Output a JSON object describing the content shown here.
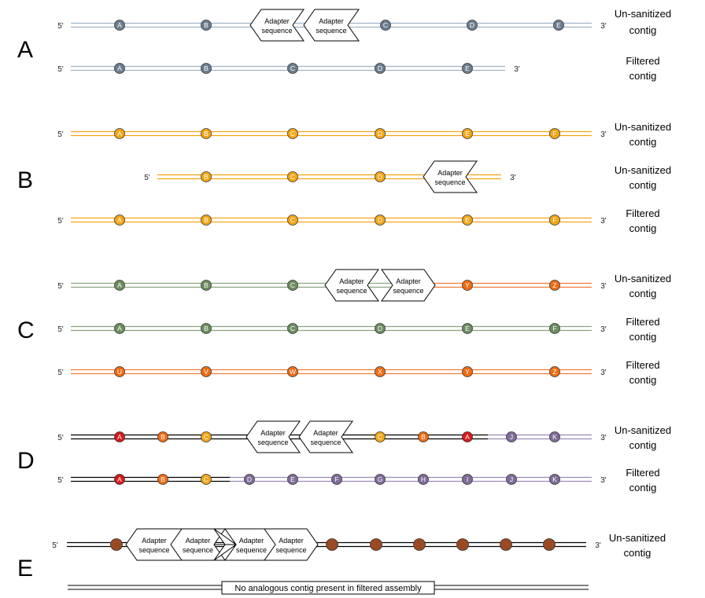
{
  "colors": {
    "slate": "#6b7d8e",
    "amber": "#f2a516",
    "green": "#6b8e5e",
    "orange": "#ee6c14",
    "red": "#d6191c",
    "purple": "#7f6b99",
    "brown": "#9a4a23",
    "line_slate": "#9fb3c8",
    "line_amber": "#f2a516",
    "line_green": "#8aa480",
    "line_orange": "#ee7c3a",
    "line_red": "#d6191c",
    "line_purple": "#9b8ab5",
    "line_black": "#000000"
  },
  "end5": "5'",
  "end3": "3'",
  "adapter_text": [
    "Adapter",
    "sequence"
  ],
  "panels": [
    {
      "letter": "A",
      "contigs": [
        {
          "label": [
            "Un-sanitized",
            "contig"
          ],
          "segments": [
            {
              "color": "line_slate"
            }
          ],
          "nodes": [
            {
              "t": "A",
              "c": "slate"
            },
            {
              "t": "B",
              "c": "slate"
            },
            {
              "t": "C",
              "c": "slate"
            },
            {
              "t": "D",
              "c": "slate"
            },
            {
              "t": "E",
              "c": "slate"
            }
          ],
          "adapters": [
            {
              "dir": "left"
            },
            {
              "dir": "left"
            }
          ]
        },
        {
          "label": [
            "Filtered",
            "contig"
          ],
          "segments": [
            {
              "color": "line_slate"
            }
          ],
          "nodes": [
            {
              "t": "A",
              "c": "slate"
            },
            {
              "t": "B",
              "c": "slate"
            },
            {
              "t": "C",
              "c": "slate"
            },
            {
              "t": "D",
              "c": "slate"
            },
            {
              "t": "E",
              "c": "slate"
            }
          ],
          "adapters": []
        }
      ]
    },
    {
      "letter": "B",
      "contigs": [
        {
          "label": [
            "Un-sanitized",
            "contig"
          ],
          "segments": [
            {
              "color": "line_amber"
            }
          ],
          "nodes": [
            {
              "t": "A",
              "c": "amber"
            },
            {
              "t": "B",
              "c": "amber"
            },
            {
              "t": "C",
              "c": "amber"
            },
            {
              "t": "D",
              "c": "amber"
            },
            {
              "t": "E",
              "c": "amber"
            },
            {
              "t": "F",
              "c": "amber"
            }
          ],
          "adapters": []
        },
        {
          "label": [
            "Un-sanitized",
            "contig"
          ],
          "segments": [
            {
              "color": "line_amber"
            }
          ],
          "nodes": [
            {
              "t": "B",
              "c": "amber"
            },
            {
              "t": "C",
              "c": "amber"
            },
            {
              "t": "D",
              "c": "amber"
            }
          ],
          "adapters": [
            {
              "dir": "left"
            }
          ]
        },
        {
          "label": [
            "Filtered",
            "contig"
          ],
          "segments": [
            {
              "color": "line_amber"
            }
          ],
          "nodes": [
            {
              "t": "A",
              "c": "amber"
            },
            {
              "t": "B",
              "c": "amber"
            },
            {
              "t": "C",
              "c": "amber"
            },
            {
              "t": "D",
              "c": "amber"
            },
            {
              "t": "E",
              "c": "amber"
            },
            {
              "t": "F",
              "c": "amber"
            }
          ],
          "adapters": []
        }
      ]
    },
    {
      "letter": "C",
      "contigs": [
        {
          "label": [
            "Un-sanitized",
            "contig"
          ],
          "segments": [
            {
              "color": "line_green"
            },
            {
              "color": "line_orange"
            }
          ],
          "nodes": [
            {
              "t": "A",
              "c": "green"
            },
            {
              "t": "B",
              "c": "green"
            },
            {
              "t": "C",
              "c": "green"
            },
            {
              "t": "Y",
              "c": "orange"
            },
            {
              "t": "Z",
              "c": "orange"
            }
          ],
          "adapters": [
            {
              "dir": "left"
            },
            {
              "dir": "right"
            }
          ]
        },
        {
          "label": [
            "Filtered",
            "contig"
          ],
          "segments": [
            {
              "color": "line_green"
            }
          ],
          "nodes": [
            {
              "t": "A",
              "c": "green"
            },
            {
              "t": "B",
              "c": "green"
            },
            {
              "t": "C",
              "c": "green"
            },
            {
              "t": "D",
              "c": "green"
            },
            {
              "t": "E",
              "c": "green"
            },
            {
              "t": "F",
              "c": "green"
            }
          ],
          "adapters": []
        },
        {
          "label": [
            "Filtered",
            "contig"
          ],
          "segments": [
            {
              "color": "line_orange"
            }
          ],
          "nodes": [
            {
              "t": "U",
              "c": "orange"
            },
            {
              "t": "V",
              "c": "orange"
            },
            {
              "t": "W",
              "c": "orange"
            },
            {
              "t": "X",
              "c": "orange"
            },
            {
              "t": "Y",
              "c": "orange"
            },
            {
              "t": "Z",
              "c": "orange"
            }
          ],
          "adapters": []
        }
      ]
    },
    {
      "letter": "D",
      "contigs": [
        {
          "label": [
            "Un-sanitized",
            "contig"
          ],
          "segments": [
            {
              "color": "line_black"
            },
            {
              "color": "line_purple"
            }
          ],
          "nodes": [
            {
              "t": "A",
              "c": "red"
            },
            {
              "t": "B",
              "c": "orange"
            },
            {
              "t": "C",
              "c": "amber"
            },
            {
              "t": "C",
              "c": "amber"
            },
            {
              "t": "B",
              "c": "orange"
            },
            {
              "t": "A",
              "c": "red"
            },
            {
              "t": "J",
              "c": "purple"
            },
            {
              "t": "K",
              "c": "purple"
            }
          ],
          "adapters": [
            {
              "dir": "left"
            },
            {
              "dir": "left"
            }
          ]
        },
        {
          "label": [
            "Filtered",
            "contig"
          ],
          "segments": [
            {
              "color": "line_black"
            },
            {
              "color": "line_purple"
            }
          ],
          "nodes": [
            {
              "t": "A",
              "c": "red"
            },
            {
              "t": "B",
              "c": "orange"
            },
            {
              "t": "C",
              "c": "amber"
            },
            {
              "t": "D",
              "c": "purple"
            },
            {
              "t": "E",
              "c": "purple"
            },
            {
              "t": "F",
              "c": "purple"
            },
            {
              "t": "G",
              "c": "purple"
            },
            {
              "t": "H",
              "c": "purple"
            },
            {
              "t": "I",
              "c": "purple"
            },
            {
              "t": "J",
              "c": "purple"
            },
            {
              "t": "K",
              "c": "purple"
            }
          ],
          "adapters": []
        }
      ]
    },
    {
      "letter": "E",
      "contigs": [
        {
          "label": [
            "Un-sanitized",
            "contig"
          ],
          "segments": [
            {
              "color": "line_black"
            }
          ],
          "nodes": [
            {
              "t": "",
              "c": "brown"
            },
            {
              "t": "",
              "c": "brown"
            },
            {
              "t": "",
              "c": "brown"
            },
            {
              "t": "",
              "c": "brown"
            },
            {
              "t": "",
              "c": "brown"
            },
            {
              "t": "",
              "c": "brown"
            },
            {
              "t": "",
              "c": "brown"
            }
          ],
          "adapters": [
            {
              "dir": "left"
            },
            {
              "dir": "left"
            },
            {
              "dir": "right"
            },
            {
              "dir": "right"
            }
          ]
        }
      ],
      "note": "No analogous contig present in filtered assembly"
    }
  ]
}
